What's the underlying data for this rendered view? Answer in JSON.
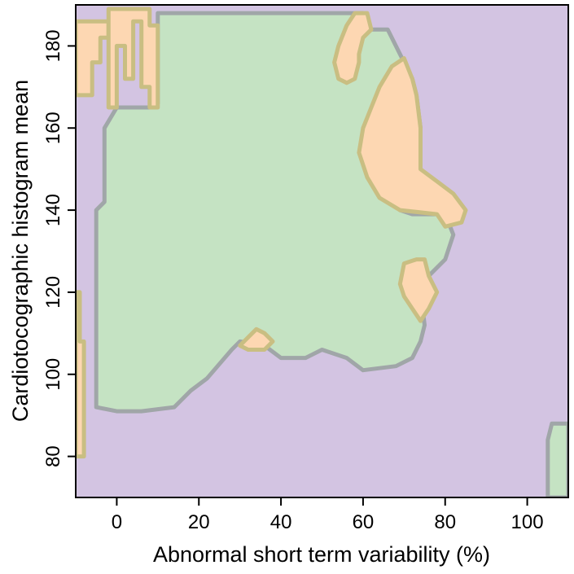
{
  "chart_data": {
    "type": "heatmap",
    "title": "",
    "xlabel": "Abnormal short term variability (%)",
    "ylabel": "Cardiotocographic histogram mean",
    "xlim": [
      -10,
      110
    ],
    "ylim": [
      70,
      190
    ],
    "x_ticks": [
      "0",
      "20",
      "40",
      "60",
      "80",
      "100"
    ],
    "y_ticks": [
      "80",
      "100",
      "120",
      "140",
      "160",
      "180"
    ],
    "grid": false,
    "legend": "none",
    "colors": {
      "background_class": "#d3c4e2",
      "green_class": "#c5e3c3",
      "orange_class": "#fdd7b2",
      "boundary_gray": "#a0a6a8",
      "boundary_olive": "#c9be82",
      "boundary_rose": "#d8a2a8"
    },
    "regions": [
      {
        "class": "green",
        "polygon": [
          [
            0,
            165
          ],
          [
            8,
            165
          ],
          [
            10,
            166
          ],
          [
            10,
            188
          ],
          [
            60,
            188
          ],
          [
            62,
            184
          ],
          [
            66,
            184
          ],
          [
            69,
            178
          ],
          [
            72,
            172
          ],
          [
            73,
            168
          ],
          [
            74,
            160
          ],
          [
            74,
            150
          ],
          [
            72,
            146
          ],
          [
            70,
            142
          ],
          [
            69,
            140
          ],
          [
            72,
            139
          ],
          [
            78,
            139
          ],
          [
            80,
            139
          ],
          [
            82,
            134
          ],
          [
            80,
            128
          ],
          [
            76,
            124
          ],
          [
            74,
            120
          ],
          [
            75,
            112
          ],
          [
            74,
            108
          ],
          [
            72,
            104
          ],
          [
            68,
            102
          ],
          [
            60,
            101
          ],
          [
            56,
            104
          ],
          [
            50,
            106
          ],
          [
            46,
            104
          ],
          [
            40,
            104
          ],
          [
            36,
            107
          ],
          [
            30,
            108
          ],
          [
            28,
            106
          ],
          [
            22,
            99
          ],
          [
            18,
            96
          ],
          [
            14,
            92
          ],
          [
            6,
            91
          ],
          [
            0,
            91
          ],
          [
            -5,
            92
          ],
          [
            -5,
            140
          ],
          [
            -3,
            142
          ],
          [
            -3,
            160
          ],
          [
            0,
            165
          ]
        ]
      },
      {
        "class": "green",
        "polygon": [
          [
            105,
            70
          ],
          [
            105,
            84
          ],
          [
            106,
            88
          ],
          [
            110,
            88
          ],
          [
            110,
            70
          ]
        ]
      },
      {
        "class": "orange",
        "polygon": [
          [
            59,
            178
          ],
          [
            60,
            182
          ],
          [
            62,
            184
          ],
          [
            61,
            188
          ],
          [
            58,
            188
          ],
          [
            56,
            185
          ],
          [
            54,
            180
          ],
          [
            53,
            176
          ],
          [
            54,
            172
          ],
          [
            56,
            171
          ],
          [
            58,
            172
          ],
          [
            59,
            176
          ]
        ]
      },
      {
        "class": "orange",
        "polygon": [
          [
            70,
            177
          ],
          [
            72,
            172
          ],
          [
            73,
            168
          ],
          [
            74,
            160
          ],
          [
            74,
            150
          ],
          [
            78,
            147
          ],
          [
            82,
            144
          ],
          [
            85,
            140
          ],
          [
            84,
            137
          ],
          [
            80,
            136
          ],
          [
            78,
            139
          ],
          [
            69,
            140
          ],
          [
            64,
            143
          ],
          [
            61,
            148
          ],
          [
            59,
            154
          ],
          [
            60,
            160
          ],
          [
            62,
            165
          ],
          [
            64,
            170
          ],
          [
            67,
            175
          ],
          [
            70,
            177
          ]
        ]
      },
      {
        "class": "orange",
        "polygon": [
          [
            70,
            127
          ],
          [
            73,
            128
          ],
          [
            75,
            128
          ],
          [
            76,
            124
          ],
          [
            78,
            120
          ],
          [
            76,
            116
          ],
          [
            74,
            113
          ],
          [
            72,
            116
          ],
          [
            70,
            119
          ],
          [
            69,
            122
          ],
          [
            70,
            127
          ]
        ]
      },
      {
        "class": "orange",
        "polygon": [
          [
            31,
            108
          ],
          [
            34,
            111
          ],
          [
            36,
            110
          ],
          [
            38,
            108
          ],
          [
            36,
            106
          ],
          [
            32,
            106
          ],
          [
            30,
            107
          ]
        ]
      },
      {
        "class": "orange",
        "polygon": [
          [
            -10,
            168
          ],
          [
            -6,
            168
          ],
          [
            -6,
            176
          ],
          [
            -4,
            176
          ],
          [
            -4,
            182
          ],
          [
            -2,
            182
          ],
          [
            -2,
            186
          ],
          [
            -10,
            186
          ]
        ]
      },
      {
        "class": "orange",
        "polygon": [
          [
            -2,
            165
          ],
          [
            0,
            165
          ],
          [
            0,
            180
          ],
          [
            2,
            180
          ],
          [
            2,
            172
          ],
          [
            4,
            172
          ],
          [
            4,
            186
          ],
          [
            6,
            186
          ],
          [
            6,
            170
          ],
          [
            8,
            170
          ],
          [
            8,
            165
          ],
          [
            10,
            165
          ],
          [
            10,
            185
          ],
          [
            8,
            185
          ],
          [
            8,
            189
          ],
          [
            -2,
            189
          ]
        ]
      },
      {
        "class": "orange",
        "polygon": [
          [
            -10,
            80
          ],
          [
            -8,
            80
          ],
          [
            -8,
            108
          ],
          [
            -9,
            108
          ],
          [
            -9,
            120
          ],
          [
            -10,
            120
          ]
        ]
      }
    ]
  }
}
